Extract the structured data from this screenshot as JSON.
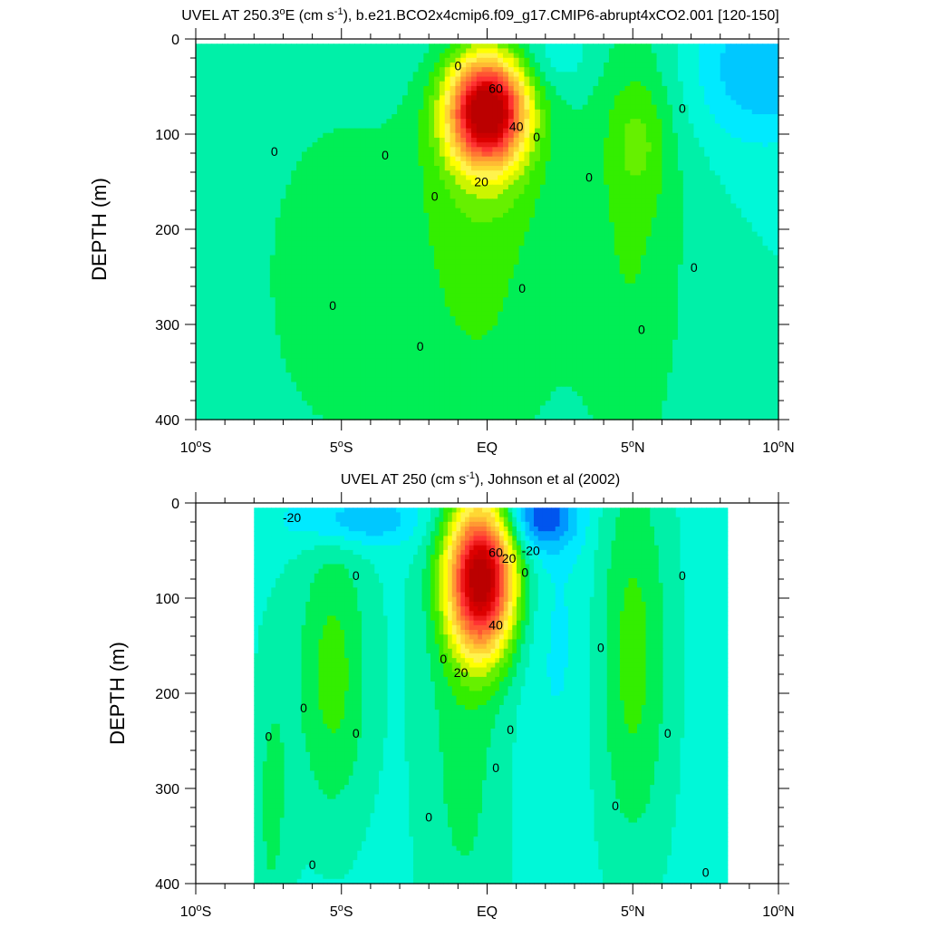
{
  "chart_data": [
    {
      "type": "heatmap",
      "title": "UVEL AT 250.3",
      "title_deg": "o",
      "title_mid": "E (cm s",
      "title_exp": "-1",
      "title_end": "), b.e21.BCO2x4cmip6.f09_g17.CMIP6-abrupt4xCO2.001 [120-150]",
      "ylabel": "DEPTH (m)",
      "xlabel": "",
      "xlim": [
        -10,
        10
      ],
      "ylim": [
        400,
        0
      ],
      "x_ticks": [
        {
          "value": -10,
          "num": "10",
          "dir": "S"
        },
        {
          "value": -5,
          "num": "5",
          "dir": "S"
        },
        {
          "value": 0,
          "num": "EQ",
          "dir": ""
        },
        {
          "value": 5,
          "num": "5",
          "dir": "N"
        },
        {
          "value": 10,
          "num": "10",
          "dir": "N"
        }
      ],
      "y_ticks": [
        {
          "value": 0,
          "label": "0"
        },
        {
          "value": 100,
          "label": "100"
        },
        {
          "value": 200,
          "label": "200"
        },
        {
          "value": 300,
          "label": "300"
        },
        {
          "value": 400,
          "label": "400"
        }
      ],
      "data_xlim": [
        -10,
        10
      ],
      "data_ylim": [
        5,
        400
      ],
      "background_value": -5,
      "features": [
        {
          "kind": "gaussian",
          "x": -5.0,
          "y": 250,
          "sx": 2.2,
          "sy": 140,
          "amp": 9
        },
        {
          "kind": "gaussian",
          "x": 0.0,
          "y": 110,
          "sx": 1.5,
          "sy": 75,
          "amp": 14
        },
        {
          "kind": "gaussian",
          "x": 0.0,
          "y": 300,
          "sx": 2.0,
          "sy": 120,
          "amp": 9
        },
        {
          "kind": "gaussian",
          "x": 0.0,
          "y": 75,
          "sx": 0.9,
          "sy": 38,
          "amp": 80
        },
        {
          "kind": "gaussian",
          "x": 5.0,
          "y": 200,
          "sx": 1.4,
          "sy": 200,
          "amp": 10
        },
        {
          "kind": "gaussian",
          "x": 5.2,
          "y": 105,
          "sx": 0.7,
          "sy": 45,
          "amp": 8
        },
        {
          "kind": "gaussian",
          "x": 9.5,
          "y": 30,
          "sx": 1.8,
          "sy": 55,
          "amp": -15
        },
        {
          "kind": "gaussian",
          "x": 2.3,
          "y": 20,
          "sx": 1.0,
          "sy": 25,
          "amp": -6
        }
      ],
      "contour_labels": [
        {
          "x": -1.0,
          "y": 28,
          "text": "0"
        },
        {
          "x": 0.3,
          "y": 52,
          "text": "60"
        },
        {
          "x": 1.0,
          "y": 92,
          "text": "40"
        },
        {
          "x": -0.2,
          "y": 150,
          "text": "20"
        },
        {
          "x": -7.3,
          "y": 118,
          "text": "0"
        },
        {
          "x": -3.5,
          "y": 122,
          "text": "0"
        },
        {
          "x": -1.8,
          "y": 165,
          "text": "0"
        },
        {
          "x": 1.7,
          "y": 103,
          "text": "0"
        },
        {
          "x": 3.5,
          "y": 145,
          "text": "0"
        },
        {
          "x": 6.7,
          "y": 73,
          "text": "0"
        },
        {
          "x": 7.1,
          "y": 240,
          "text": "0"
        },
        {
          "x": 1.2,
          "y": 262,
          "text": "0"
        },
        {
          "x": -5.3,
          "y": 280,
          "text": "0"
        },
        {
          "x": -2.3,
          "y": 323,
          "text": "0"
        },
        {
          "x": 5.3,
          "y": 305,
          "text": "0"
        }
      ]
    },
    {
      "type": "heatmap",
      "title": "UVEL AT 250 (cm s",
      "title_exp": "-1",
      "title_end": "), Johnson et al (2002)",
      "ylabel": "DEPTH (m)",
      "xlabel": "",
      "xlim": [
        -10,
        10
      ],
      "ylim": [
        400,
        0
      ],
      "x_ticks": [
        {
          "value": -10,
          "num": "10",
          "dir": "S"
        },
        {
          "value": -5,
          "num": "5",
          "dir": "S"
        },
        {
          "value": 0,
          "num": "EQ",
          "dir": ""
        },
        {
          "value": 5,
          "num": "5",
          "dir": "N"
        },
        {
          "value": 10,
          "num": "10",
          "dir": "N"
        }
      ],
      "y_ticks": [
        {
          "value": 0,
          "label": "0"
        },
        {
          "value": 100,
          "label": "100"
        },
        {
          "value": 200,
          "label": "200"
        },
        {
          "value": 300,
          "label": "300"
        },
        {
          "value": 400,
          "label": "400"
        }
      ],
      "data_xlim": [
        -8,
        8.25
      ],
      "data_ylim": [
        5,
        400
      ],
      "background_value": -7,
      "features": [
        {
          "kind": "gaussian",
          "x": -5.3,
          "y": 180,
          "sx": 0.9,
          "sy": 110,
          "amp": 14
        },
        {
          "kind": "gaussian",
          "x": -7.4,
          "y": 320,
          "sx": 0.5,
          "sy": 120,
          "amp": 8
        },
        {
          "kind": "gaussian",
          "x": -0.8,
          "y": 230,
          "sx": 1.1,
          "sy": 200,
          "amp": 9
        },
        {
          "kind": "gaussian",
          "x": -0.2,
          "y": 80,
          "sx": 0.8,
          "sy": 55,
          "amp": 84
        },
        {
          "kind": "gaussian",
          "x": 5.0,
          "y": 160,
          "sx": 0.9,
          "sy": 150,
          "amp": 14
        },
        {
          "kind": "gaussian",
          "x": -4.5,
          "y": 18,
          "sx": 1.6,
          "sy": 20,
          "amp": -14
        },
        {
          "kind": "gaussian",
          "x": 1.8,
          "y": 15,
          "sx": 0.9,
          "sy": 25,
          "amp": -22
        },
        {
          "kind": "gaussian",
          "x": 2.4,
          "y": 140,
          "sx": 1.0,
          "sy": 110,
          "amp": -4
        }
      ],
      "contour_labels": [
        {
          "x": -6.7,
          "y": 15,
          "text": "-20"
        },
        {
          "x": 1.5,
          "y": 50,
          "text": "-20"
        },
        {
          "x": 0.75,
          "y": 58,
          "text": "20"
        },
        {
          "x": 0.3,
          "y": 52,
          "text": "60"
        },
        {
          "x": 0.3,
          "y": 128,
          "text": "40"
        },
        {
          "x": -0.9,
          "y": 178,
          "text": "20"
        },
        {
          "x": -4.5,
          "y": 76,
          "text": "0"
        },
        {
          "x": 1.3,
          "y": 73,
          "text": "0"
        },
        {
          "x": 6.7,
          "y": 76,
          "text": "0"
        },
        {
          "x": -1.5,
          "y": 164,
          "text": "0"
        },
        {
          "x": 3.9,
          "y": 152,
          "text": "0"
        },
        {
          "x": -6.3,
          "y": 215,
          "text": "0"
        },
        {
          "x": -4.5,
          "y": 242,
          "text": "0"
        },
        {
          "x": -7.5,
          "y": 245,
          "text": "0"
        },
        {
          "x": 0.8,
          "y": 238,
          "text": "0"
        },
        {
          "x": 6.2,
          "y": 242,
          "text": "0"
        },
        {
          "x": 0.3,
          "y": 278,
          "text": "0"
        },
        {
          "x": -2.0,
          "y": 330,
          "text": "0"
        },
        {
          "x": 4.4,
          "y": 318,
          "text": "0"
        },
        {
          "x": -6.0,
          "y": 380,
          "text": "0"
        },
        {
          "x": 7.5,
          "y": 388,
          "text": "0"
        }
      ]
    }
  ],
  "colorscale": {
    "levels": [
      -25,
      -20,
      -15,
      -10,
      -5,
      0,
      5,
      10,
      15,
      20,
      25,
      30,
      35,
      40,
      45,
      50,
      55,
      60,
      65,
      70,
      75
    ],
    "colors": [
      "#0055ee",
      "#0096ff",
      "#00c8ff",
      "#00eaff",
      "#00f8d8",
      "#00f0a8",
      "#00ee55",
      "#33ee00",
      "#66f000",
      "#ccf500",
      "#ffff00",
      "#fff34d",
      "#ffd733",
      "#ffbb33",
      "#ff9933",
      "#ff7733",
      "#ff5533",
      "#ff3333",
      "#ee1a1a",
      "#dd0000",
      "#cc0000",
      "#bb0000"
    ]
  }
}
